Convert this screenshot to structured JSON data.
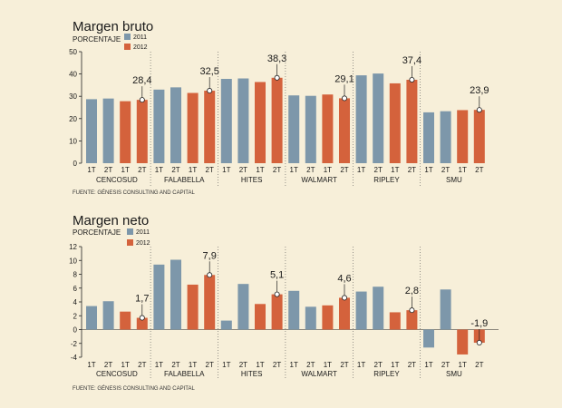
{
  "chart_data": [
    {
      "type": "bar",
      "title": "Margen bruto",
      "ylabel": "PORCENTAJE",
      "ylim": [
        0,
        50
      ],
      "yticks": [
        0,
        10,
        20,
        30,
        40,
        50
      ],
      "source": "FUENTE: GÉNESIS CONSULTING AND CAPITAL",
      "legend": [
        "2011",
        "2012"
      ],
      "quarters": [
        "1T",
        "2T",
        "1T",
        "2T"
      ],
      "colors": {
        "2011": "#7d97aa",
        "2012": "#d4623c"
      },
      "companies": [
        {
          "name": "CENCOSUD",
          "values2011": [
            28.7,
            29.0
          ],
          "values2012": [
            27.8,
            28.4
          ],
          "annotation": "28,4"
        },
        {
          "name": "FALABELLA",
          "values2011": [
            33.0,
            34.0
          ],
          "values2012": [
            31.5,
            32.5
          ],
          "annotation": "32,5"
        },
        {
          "name": "HITES",
          "values2011": [
            37.8,
            38.0
          ],
          "values2012": [
            36.4,
            38.3
          ],
          "annotation": "38,3"
        },
        {
          "name": "WALMART",
          "values2011": [
            30.4,
            30.2
          ],
          "values2012": [
            30.8,
            29.1
          ],
          "annotation": "29,1"
        },
        {
          "name": "RIPLEY",
          "values2011": [
            39.4,
            40.2
          ],
          "values2012": [
            35.8,
            37.4
          ],
          "annotation": "37,4"
        },
        {
          "name": "SMU",
          "values2011": [
            22.8,
            23.3
          ],
          "values2012": [
            23.8,
            23.9
          ],
          "annotation": "23,9"
        }
      ]
    },
    {
      "type": "bar",
      "title": "Margen neto",
      "ylabel": "PORCENTAJE",
      "ylim": [
        -4,
        12
      ],
      "yticks": [
        -4,
        -2,
        0,
        2,
        4,
        6,
        8,
        10,
        12
      ],
      "source": "FUENTE: GÉNESIS CONSULTING AND CAPITAL",
      "legend": [
        "2011",
        "2012"
      ],
      "quarters": [
        "1T",
        "2T",
        "1T",
        "2T"
      ],
      "colors": {
        "2011": "#7d97aa",
        "2012": "#d4623c"
      },
      "companies": [
        {
          "name": "CENCOSUD",
          "values2011": [
            3.4,
            4.1
          ],
          "values2012": [
            2.6,
            1.7
          ],
          "annotation": "1,7"
        },
        {
          "name": "FALABELLA",
          "values2011": [
            9.4,
            10.1
          ],
          "values2012": [
            6.5,
            7.9
          ],
          "annotation": "7,9"
        },
        {
          "name": "HITES",
          "values2011": [
            1.3,
            6.6
          ],
          "values2012": [
            3.7,
            5.1
          ],
          "annotation": "5,1"
        },
        {
          "name": "WALMART",
          "values2011": [
            5.6,
            3.3
          ],
          "values2012": [
            3.5,
            4.6
          ],
          "annotation": "4,6"
        },
        {
          "name": "RIPLEY",
          "values2011": [
            5.5,
            6.2
          ],
          "values2012": [
            2.5,
            2.8
          ],
          "annotation": "2,8"
        },
        {
          "name": "SMU",
          "values2011": [
            -2.6,
            5.8
          ],
          "values2012": [
            -3.6,
            -1.9
          ],
          "annotation": "-1,9"
        }
      ]
    }
  ]
}
